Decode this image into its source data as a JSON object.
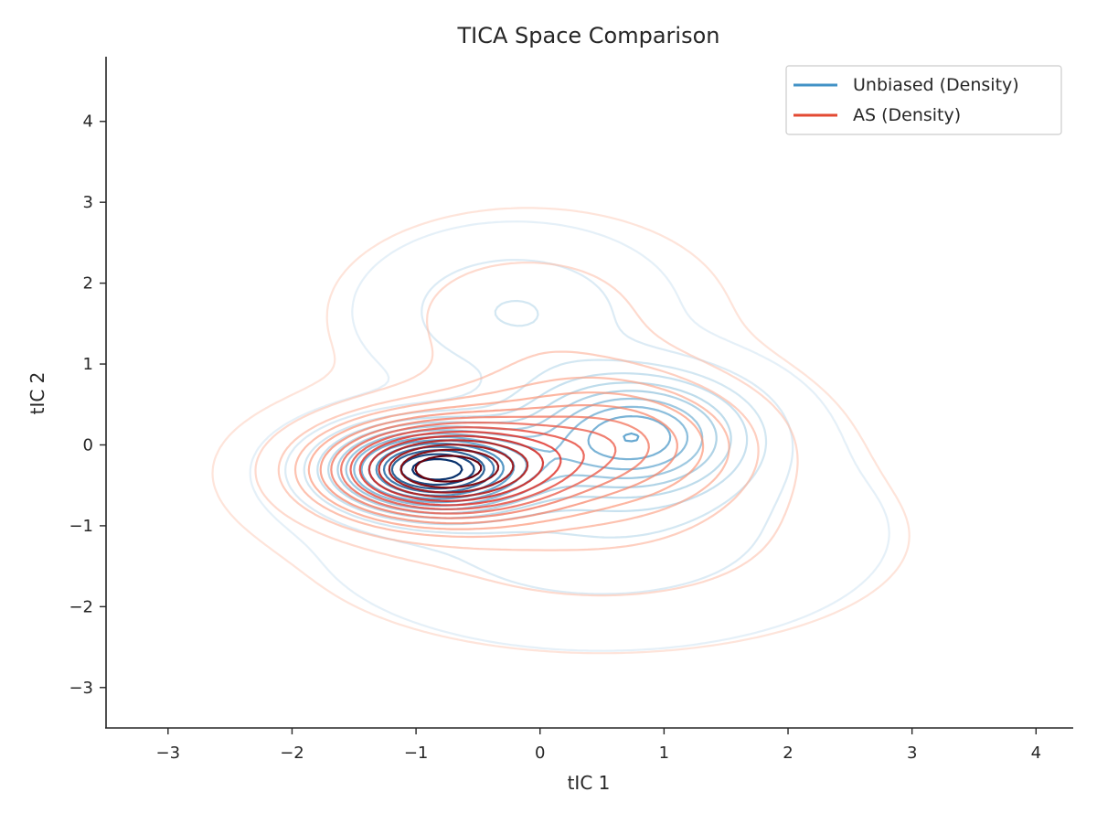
{
  "chart_data": {
    "type": "kde-contour",
    "title": "TICA Space Comparison",
    "xlabel": "tIC 1",
    "ylabel": "tIC 2",
    "xlim": [
      -3.5,
      4.3
    ],
    "ylim": [
      -3.5,
      4.8
    ],
    "xticks": [
      -3,
      -2,
      -1,
      0,
      1,
      2,
      3,
      4
    ],
    "yticks": [
      -3,
      -2,
      -1,
      0,
      1,
      2,
      3,
      4
    ],
    "xtick_labels": [
      "−3",
      "−2",
      "−1",
      "0",
      "1",
      "2",
      "3",
      "4"
    ],
    "ytick_labels": [
      "−3",
      "−2",
      "−1",
      "0",
      "1",
      "2",
      "3",
      "4"
    ],
    "grid": false,
    "legend_position": "top-right",
    "series": [
      {
        "name": "Unbiased (Density)",
        "legend_color": "#4292c6",
        "colormap": "Blues",
        "contours": {
          "levels": 15,
          "components": [
            {
              "center": [
                -0.85,
                -0.3
              ],
              "spread": [
                0.5,
                0.33
              ],
              "weight": 1.0
            },
            {
              "center": [
                0.75,
                0.12
              ],
              "spread": [
                0.58,
                0.48
              ],
              "weight": 0.56
            },
            {
              "center": [
                -0.2,
                1.65
              ],
              "spread": [
                0.65,
                0.55
              ],
              "weight": 0.12
            },
            {
              "center": [
                0.5,
                -1.1
              ],
              "spread": [
                1.2,
                0.75
              ],
              "weight": 0.1
            }
          ]
        }
      },
      {
        "name": "AS (Density)",
        "legend_color": "#e34a33",
        "colormap": "Reds",
        "contours": {
          "levels": 15,
          "components": [
            {
              "center": [
                -0.82,
                -0.3
              ],
              "spread": [
                0.62,
                0.4
              ],
              "weight": 1.0
            },
            {
              "center": [
                0.55,
                0.05
              ],
              "spread": [
                0.75,
                0.55
              ],
              "weight": 0.38
            },
            {
              "center": [
                -0.1,
                1.6
              ],
              "spread": [
                0.85,
                0.7
              ],
              "weight": 0.1
            },
            {
              "center": [
                0.5,
                -1.15
              ],
              "spread": [
                1.3,
                0.75
              ],
              "weight": 0.1
            }
          ]
        }
      }
    ]
  }
}
